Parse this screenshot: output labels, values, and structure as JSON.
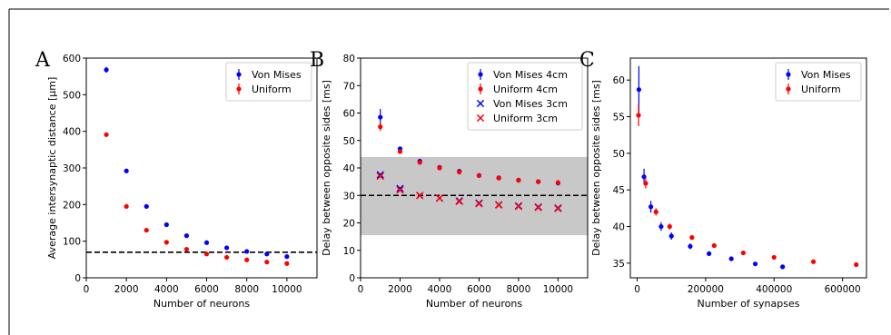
{
  "chart_data": [
    {
      "panel_label": "A",
      "type": "scatter",
      "xlabel": "Number of neurons",
      "ylabel": "Average intersynaptic distance [μm]",
      "xlim": [
        0,
        11500
      ],
      "ylim": [
        0,
        600
      ],
      "xticks": [
        0,
        2000,
        4000,
        6000,
        8000,
        10000
      ],
      "yticks": [
        0,
        100,
        200,
        300,
        400,
        500,
        600
      ],
      "legend_position": "top-right",
      "reference_line": {
        "y": 70,
        "style": "dashed",
        "color": "#000000"
      },
      "series": [
        {
          "name": "Von Mises",
          "color": "#0000ff",
          "marker": "dot-errorbar",
          "x": [
            1000,
            2000,
            3000,
            4000,
            5000,
            6000,
            7000,
            8000,
            9000,
            10000
          ],
          "y": [
            568,
            292,
            195,
            145,
            115,
            96,
            82,
            72,
            65,
            58
          ],
          "err": [
            8,
            4,
            3,
            2,
            2,
            2,
            1,
            1,
            1,
            1
          ]
        },
        {
          "name": "Uniform",
          "color": "#ff0000",
          "marker": "dot-errorbar",
          "x": [
            1000,
            2000,
            3000,
            4000,
            5000,
            6000,
            7000,
            8000,
            9000,
            10000
          ],
          "y": [
            391,
            195,
            130,
            97,
            78,
            65,
            56,
            49,
            43,
            39
          ],
          "err": [
            0,
            0,
            0,
            0,
            0,
            0,
            0,
            0,
            0,
            0
          ]
        }
      ]
    },
    {
      "panel_label": "B",
      "type": "scatter",
      "xlabel": "Number of neurons",
      "ylabel": "Delay between opposite sides [ms]",
      "xlim": [
        0,
        11500
      ],
      "ylim": [
        0,
        80
      ],
      "xticks": [
        0,
        2000,
        4000,
        6000,
        8000,
        10000
      ],
      "yticks": [
        0,
        10,
        20,
        30,
        40,
        50,
        60,
        70,
        80
      ],
      "legend_position": "top-right",
      "reference_line": {
        "y": 30,
        "style": "dashed",
        "color": "#000000"
      },
      "shaded_band": {
        "y0": 15.5,
        "y1": 44,
        "color": "#c8c8c8"
      },
      "series": [
        {
          "name": "Von Mises 4cm",
          "color": "#0000ff",
          "marker": "dot-errorbar",
          "x": [
            1000,
            2000,
            3000,
            4000,
            5000,
            6000,
            7000,
            8000,
            9000,
            10000
          ],
          "y": [
            58.5,
            47,
            42.5,
            40.2,
            38.8,
            37.3,
            36.4,
            35.6,
            35,
            34.5
          ],
          "err": [
            3,
            0.6,
            0.4,
            0.3,
            0.3,
            0.2,
            0.2,
            0.2,
            0.2,
            0.2
          ]
        },
        {
          "name": "Uniform 4cm",
          "color": "#ff0000",
          "marker": "dot-errorbar",
          "x": [
            1000,
            2000,
            3000,
            4000,
            5000,
            6000,
            7000,
            8000,
            9000,
            10000
          ],
          "y": [
            55,
            46,
            42,
            40,
            38.5,
            37.2,
            36.3,
            35.5,
            35,
            34.7
          ],
          "err": [
            1.5,
            0.5,
            0.4,
            0.3,
            0.3,
            0.2,
            0.2,
            0.2,
            0.2,
            0.2
          ]
        },
        {
          "name": "Von Mises 3cm",
          "color": "#0000ff",
          "marker": "x",
          "x": [
            1000,
            2000,
            3000,
            4000,
            5000,
            6000,
            7000,
            8000,
            9000,
            10000
          ],
          "y": [
            37.5,
            32.5,
            30,
            29,
            28,
            27.2,
            26.6,
            26.2,
            25.8,
            25.4
          ]
        },
        {
          "name": "Uniform 3cm",
          "color": "#ff0000",
          "marker": "x",
          "x": [
            1000,
            2000,
            3000,
            4000,
            5000,
            6000,
            7000,
            8000,
            9000,
            10000
          ],
          "y": [
            37,
            32,
            30,
            29,
            27.8,
            27,
            26.5,
            26,
            25.6,
            25.2
          ]
        }
      ]
    },
    {
      "panel_label": "C",
      "type": "scatter",
      "xlabel": "Number of synapses",
      "ylabel": "Delay between opposite sides [ms]",
      "xlim": [
        -20000,
        670000
      ],
      "ylim": [
        33,
        63
      ],
      "xticks": [
        0,
        200000,
        400000,
        600000
      ],
      "yticks": [
        35,
        40,
        45,
        50,
        55,
        60
      ],
      "legend_position": "top-right",
      "series": [
        {
          "name": "Von Mises",
          "color": "#0000ff",
          "marker": "dot-errorbar",
          "x": [
            5000,
            20000,
            40000,
            70000,
            100000,
            155000,
            210000,
            275000,
            345000,
            425000
          ],
          "y": [
            58.7,
            46.8,
            42.7,
            40,
            38.7,
            37.3,
            36.3,
            35.6,
            34.9,
            34.5
          ],
          "err": [
            3.2,
            1.1,
            0.8,
            0.6,
            0.5,
            0.4,
            0.3,
            0.3,
            0.2,
            0.2
          ]
        },
        {
          "name": "Uniform",
          "color": "#ff0000",
          "marker": "dot-errorbar",
          "x": [
            4000,
            25000,
            55000,
            95000,
            160000,
            225000,
            310000,
            400000,
            515000,
            640000
          ],
          "y": [
            55.2,
            45.9,
            42,
            40,
            38.5,
            37.4,
            36.4,
            35.8,
            35.2,
            34.8
          ],
          "err": [
            1.5,
            0.7,
            0.5,
            0.4,
            0.3,
            0.3,
            0.2,
            0.2,
            0.2,
            0.2
          ]
        }
      ]
    }
  ]
}
